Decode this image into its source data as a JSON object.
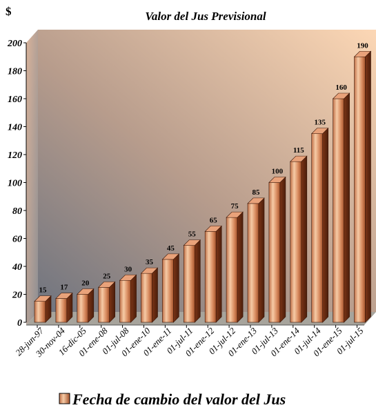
{
  "chart_data": {
    "type": "bar",
    "title": "Valor del Jus Previsional",
    "ylabel": "$",
    "categories": [
      "28-jun-97",
      "30-nov-04",
      "16-dic-05",
      "01-ene-08",
      "01-jul-08",
      "01-ene-10",
      "01-ene-11",
      "01-jul-11",
      "01-ene-12",
      "01-jul-12",
      "01-ene-13",
      "01-jul-13",
      "01-ene-14",
      "01-jul-14",
      "01-ene-15",
      "01-jul-15"
    ],
    "series": [
      {
        "name": "Fecha de cambio del valor del Jus",
        "values": [
          15,
          17,
          20,
          25,
          30,
          35,
          45,
          55,
          65,
          75,
          85,
          100,
          115,
          135,
          160,
          190
        ]
      }
    ],
    "ylim": [
      0,
      200
    ],
    "yticks": [
      0,
      20,
      40,
      60,
      80,
      100,
      120,
      140,
      160,
      180,
      200
    ],
    "ytick_labels": [
      "0",
      "20",
      "40",
      "60",
      "80",
      "100",
      "120",
      "140",
      "160",
      "180",
      "200"
    ],
    "data_labels": [
      "15",
      "17",
      "20",
      "25",
      "30",
      "35",
      "45",
      "55",
      "65",
      "75",
      "85",
      "100",
      "115",
      "135",
      "160",
      "190"
    ],
    "legend_position": "bottom",
    "grid": false,
    "three_d": true,
    "colors": {
      "bar_light": "#f6c9a0",
      "bar_mid": "#c56a3c",
      "bar_dark": "#6a2a10",
      "bar_top": "#e9a27a",
      "wall_top": "#fbd2b0",
      "wall_bottom": "#777b86",
      "floor": "#a7a49c"
    }
  }
}
